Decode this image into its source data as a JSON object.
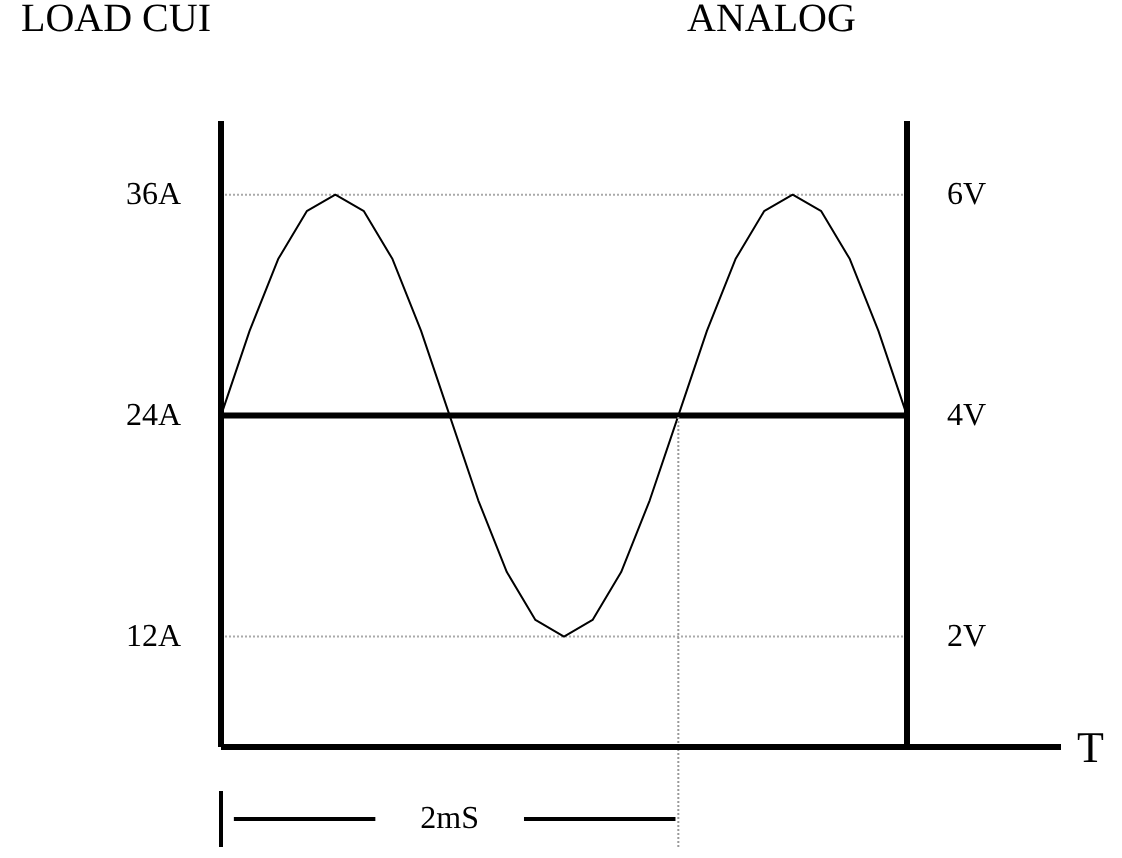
{
  "chart_data": {
    "type": "line",
    "ylabel": "LOAD CUI",
    "y2label": "ANALOG",
    "xlabel": "T",
    "categories": [
      null,
      null,
      null,
      null,
      null,
      null,
      null,
      null,
      null,
      null,
      null,
      null,
      null,
      null,
      null,
      null,
      null,
      null,
      null,
      null,
      null,
      null,
      null,
      null,
      null
    ],
    "series": [
      {
        "color": "#000000",
        "values": [
          24,
          28.6,
          32.5,
          35.1,
          36,
          35.1,
          32.5,
          28.6,
          24,
          19.4,
          15.5,
          12.9,
          12,
          12.9,
          15.5,
          19.4,
          24,
          28.6,
          32.5,
          35.1,
          36,
          35.1,
          32.5,
          28.6,
          24
        ]
      },
      {
        "color": "#000000",
        "axis": "y2",
        "values": [
          4,
          4,
          4,
          4,
          4,
          4,
          4,
          4,
          4,
          4,
          4,
          4,
          4,
          4,
          4,
          4,
          4,
          4,
          4,
          4,
          4,
          4,
          4,
          4,
          4
        ]
      }
    ],
    "ylim": [
      6,
      40
    ],
    "yticks": [
      {
        "value": 12,
        "label": "12A"
      },
      {
        "value": 24,
        "label": "24A"
      },
      {
        "value": 36,
        "label": "36A"
      }
    ],
    "y2lim": [
      1,
      6.667
    ],
    "y2ticks": [
      {
        "value": 2,
        "label": "2V"
      },
      {
        "value": 4,
        "label": "4V"
      },
      {
        "value": 6,
        "label": "6V"
      }
    ],
    "tick_labels": "y",
    "grid": "y",
    "annotations": [
      "2mS"
    ]
  }
}
